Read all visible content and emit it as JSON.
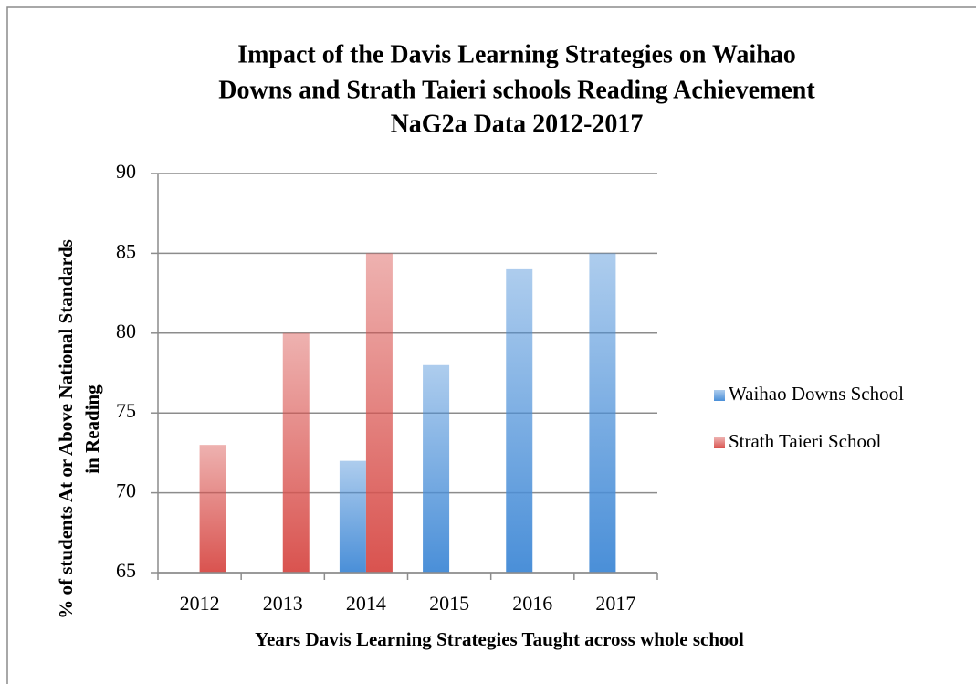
{
  "chart_data": {
    "type": "bar",
    "title": [
      "Impact of the Davis Learning Strategies on Waihao",
      "Downs and Strath Taieri schools Reading Achievement",
      "NaG2a Data 2012-2017"
    ],
    "x_label": "Years Davis Learning Strategies Taught across whole school",
    "y_label": [
      "% of students At or Above National Standards",
      "in Reading"
    ],
    "categories": [
      "2012",
      "2013",
      "2014",
      "2015",
      "2016",
      "2017"
    ],
    "series": [
      {
        "name": "Waihao Downs School",
        "color": "#4a8fd8",
        "values": [
          null,
          null,
          72,
          78,
          84,
          85
        ]
      },
      {
        "name": "Strath Taieri School",
        "color": "#d9534f",
        "values": [
          73,
          80,
          85,
          null,
          null,
          null
        ]
      }
    ],
    "ylim": [
      65,
      90
    ],
    "yticks": [
      65,
      70,
      75,
      80,
      85,
      90
    ],
    "grid": true,
    "legend": "right"
  }
}
